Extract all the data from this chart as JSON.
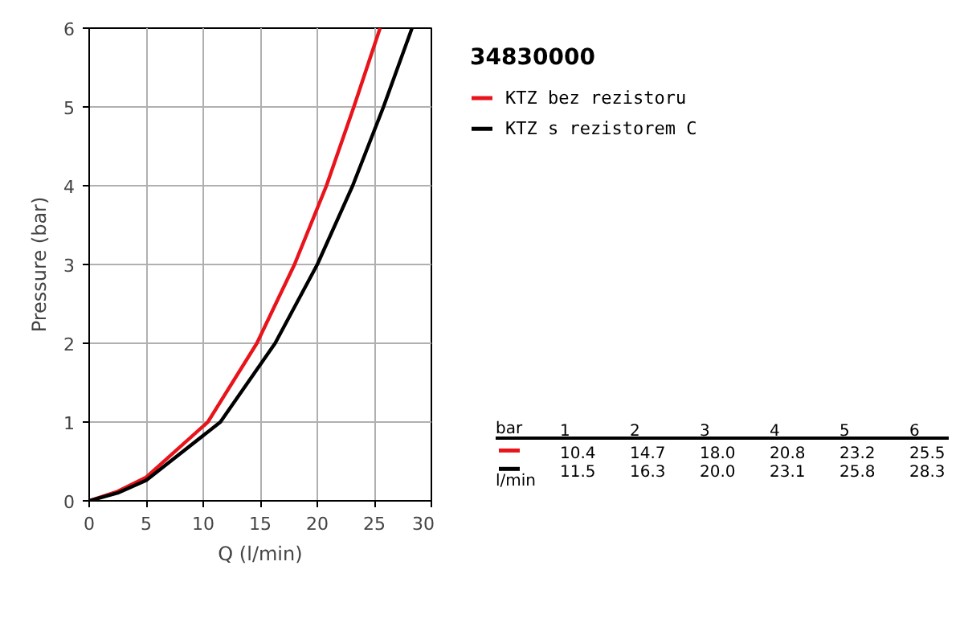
{
  "chart_data": {
    "type": "line",
    "title": "34830000",
    "xlabel": "Q (l/min)",
    "ylabel": "Pressure (bar)",
    "xlim": [
      0,
      30
    ],
    "ylim": [
      0,
      6
    ],
    "xticks": [
      0,
      5,
      10,
      15,
      20,
      25,
      30
    ],
    "yticks": [
      0,
      1,
      2,
      3,
      4,
      5,
      6
    ],
    "grid": true,
    "legend": "right",
    "marker": "none",
    "line_style": "solid",
    "annotations": [
      "bar",
      "1",
      "2",
      "3",
      "4",
      "5",
      "6",
      "10.4",
      "14.7",
      "18.0",
      "20.8",
      "23.2",
      "25.5",
      "11.5",
      "16.3",
      "20.0",
      "23.1",
      "25.8",
      "28.3",
      "l/min"
    ],
    "series": [
      {
        "name": "KTZ bez rezistoru",
        "color": "#e8141b",
        "x": [
          0,
          2.5,
          5,
          10.4,
          14.7,
          18.0,
          20.8,
          23.2,
          25.5
        ],
        "values": [
          0,
          0.12,
          0.3,
          1,
          2,
          3,
          4,
          5,
          6
        ]
      },
      {
        "name": "KTZ s rezistorem C",
        "color": "#000000",
        "x": [
          0,
          2.5,
          5,
          11.5,
          16.3,
          20.0,
          23.1,
          25.8,
          28.3
        ],
        "values": [
          0,
          0.1,
          0.26,
          1,
          2,
          3,
          4,
          5,
          6
        ]
      }
    ]
  }
}
